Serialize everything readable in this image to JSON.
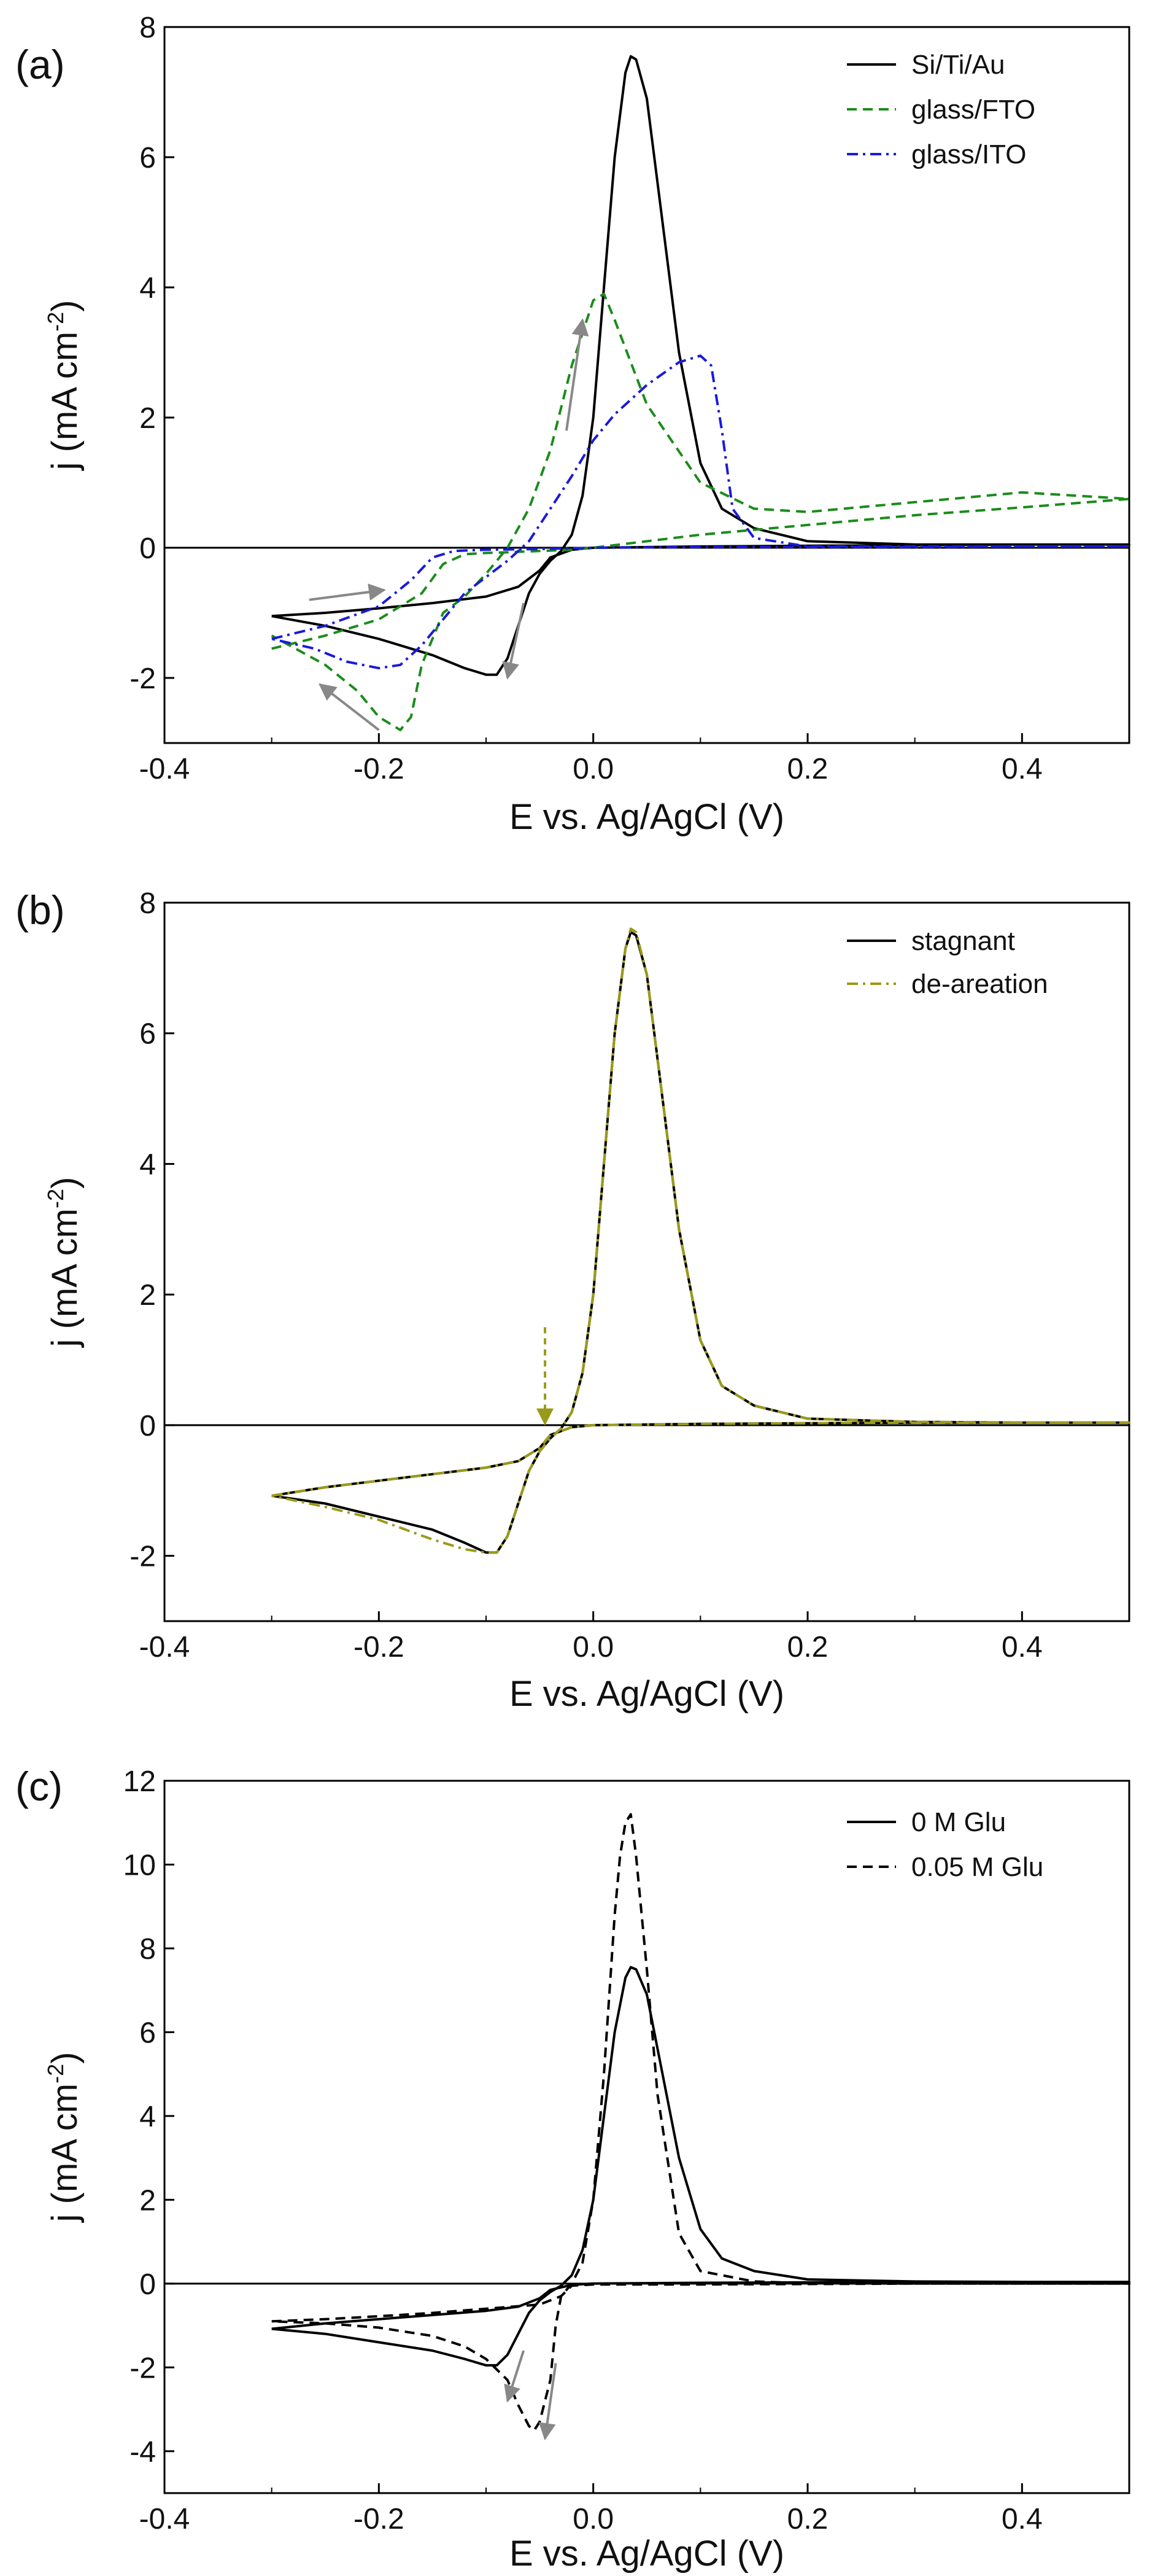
{
  "figure": {
    "panels": [
      "(a)",
      "(b)",
      "(c)"
    ]
  },
  "chart_data": [
    {
      "panel": "(a)",
      "type": "line",
      "xlabel": "E vs. Ag/AgCl (V)",
      "ylabel": "j (mA cm",
      "ylabel_sup": "-2",
      "ylabel_close": ")",
      "xlim": [
        -0.4,
        0.5
      ],
      "ylim": [
        -3,
        8
      ],
      "xticks": [
        -0.4,
        -0.2,
        0.0,
        0.2,
        0.4
      ],
      "xtick_labels": [
        "-0.4",
        "-0.2",
        "0.0",
        "0.2",
        "0.4"
      ],
      "yticks": [
        -2,
        0,
        2,
        4,
        6,
        8
      ],
      "ytick_labels": [
        "-2",
        "0",
        "2",
        "4",
        "6",
        "8"
      ],
      "grid": false,
      "legend_position": "top-right",
      "series": [
        {
          "name": "Si/Ti/Au",
          "color": "#000000",
          "style": "solid",
          "x": [
            -0.3,
            -0.25,
            -0.2,
            -0.15,
            -0.1,
            -0.07,
            -0.05,
            -0.04,
            -0.02,
            0.0,
            0.1,
            0.2,
            0.3,
            0.4,
            0.5,
            0.4,
            0.3,
            0.2,
            0.15,
            0.12,
            0.1,
            0.08,
            0.06,
            0.05,
            0.04,
            0.035,
            0.03,
            0.02,
            0.01,
            0.0,
            -0.01,
            -0.02,
            -0.03,
            -0.04,
            -0.05,
            -0.06,
            -0.07,
            -0.08,
            -0.09,
            -0.1,
            -0.12,
            -0.15,
            -0.2,
            -0.25,
            -0.3
          ],
          "y": [
            -1.05,
            -1.0,
            -0.93,
            -0.85,
            -0.75,
            -0.6,
            -0.35,
            -0.15,
            -0.03,
            0.0,
            0.02,
            0.03,
            0.04,
            0.05,
            0.05,
            0.05,
            0.05,
            0.1,
            0.3,
            0.6,
            1.3,
            3.0,
            5.6,
            6.9,
            7.5,
            7.55,
            7.3,
            6.0,
            4.0,
            2.0,
            0.8,
            0.2,
            -0.05,
            -0.2,
            -0.4,
            -0.7,
            -1.2,
            -1.7,
            -1.95,
            -1.95,
            -1.85,
            -1.65,
            -1.4,
            -1.2,
            -1.05
          ]
        },
        {
          "name": "glass/FTO",
          "color": "#1a8c1a",
          "style": "dashed",
          "x": [
            -0.3,
            -0.25,
            -0.2,
            -0.16,
            -0.14,
            -0.12,
            -0.1,
            -0.08,
            -0.05,
            -0.02,
            0.0,
            0.1,
            0.2,
            0.3,
            0.4,
            0.5,
            0.4,
            0.3,
            0.2,
            0.15,
            0.1,
            0.05,
            0.02,
            0.01,
            0.0,
            -0.02,
            -0.04,
            -0.06,
            -0.08,
            -0.1,
            -0.12,
            -0.14,
            -0.16,
            -0.17,
            -0.18,
            -0.2,
            -0.22,
            -0.25,
            -0.3
          ],
          "y": [
            -1.55,
            -1.35,
            -1.1,
            -0.7,
            -0.25,
            -0.1,
            -0.08,
            -0.07,
            -0.05,
            -0.03,
            0.0,
            0.2,
            0.35,
            0.5,
            0.62,
            0.75,
            0.85,
            0.7,
            0.55,
            0.6,
            1.0,
            2.2,
            3.5,
            3.9,
            3.8,
            2.8,
            1.5,
            0.6,
            0.0,
            -0.4,
            -0.75,
            -1.0,
            -1.8,
            -2.6,
            -2.8,
            -2.6,
            -2.2,
            -1.8,
            -1.35
          ]
        },
        {
          "name": "glass/ITO",
          "color": "#1a1adc",
          "style": "dashdot",
          "x": [
            -0.3,
            -0.25,
            -0.2,
            -0.17,
            -0.15,
            -0.13,
            -0.1,
            -0.05,
            0.0,
            0.1,
            0.2,
            0.3,
            0.4,
            0.5,
            0.4,
            0.3,
            0.2,
            0.15,
            0.13,
            0.12,
            0.11,
            0.1,
            0.08,
            0.05,
            0.02,
            0.0,
            -0.02,
            -0.04,
            -0.06,
            -0.08,
            -0.1,
            -0.12,
            -0.14,
            -0.16,
            -0.18,
            -0.2,
            -0.23,
            -0.26,
            -0.3
          ],
          "y": [
            -1.4,
            -1.2,
            -0.9,
            -0.5,
            -0.15,
            -0.05,
            -0.03,
            -0.02,
            0.0,
            0.01,
            0.01,
            0.01,
            0.02,
            0.02,
            0.02,
            0.02,
            0.02,
            0.15,
            0.6,
            1.8,
            2.8,
            2.95,
            2.85,
            2.5,
            2.05,
            1.65,
            1.1,
            0.6,
            0.1,
            -0.2,
            -0.45,
            -0.7,
            -1.1,
            -1.5,
            -1.8,
            -1.85,
            -1.75,
            -1.55,
            -1.4
          ]
        }
      ],
      "arrows": [
        {
          "x1": -0.265,
          "y1": -0.8,
          "x2": -0.195,
          "y2": -0.65
        },
        {
          "x1": -0.025,
          "y1": 1.8,
          "x2": -0.01,
          "y2": 3.5
        },
        {
          "x1": -0.065,
          "y1": -0.85,
          "x2": -0.08,
          "y2": -2.0
        },
        {
          "x1": -0.2,
          "y1": -2.8,
          "x2": -0.255,
          "y2": -2.1
        }
      ]
    },
    {
      "panel": "(b)",
      "type": "line",
      "xlabel": "E vs. Ag/AgCl (V)",
      "ylabel": "j (mA cm",
      "ylabel_sup": "-2",
      "ylabel_close": ")",
      "xlim": [
        -0.4,
        0.5
      ],
      "ylim": [
        -3,
        8
      ],
      "xticks": [
        -0.4,
        -0.2,
        0.0,
        0.2,
        0.4
      ],
      "xtick_labels": [
        "-0.4",
        "-0.2",
        "0.0",
        "0.2",
        "0.4"
      ],
      "yticks": [
        -2,
        0,
        2,
        4,
        6,
        8
      ],
      "ytick_labels": [
        "-2",
        "0",
        "2",
        "4",
        "6",
        "8"
      ],
      "grid": false,
      "legend_position": "top-right",
      "series": [
        {
          "name": "stagnant",
          "color": "#000000",
          "style": "solid",
          "x": [
            -0.3,
            -0.25,
            -0.2,
            -0.15,
            -0.1,
            -0.07,
            -0.05,
            -0.04,
            -0.02,
            0.0,
            0.1,
            0.2,
            0.3,
            0.4,
            0.5,
            0.4,
            0.3,
            0.2,
            0.15,
            0.12,
            0.1,
            0.08,
            0.06,
            0.05,
            0.04,
            0.035,
            0.03,
            0.02,
            0.01,
            0.0,
            -0.01,
            -0.02,
            -0.03,
            -0.04,
            -0.05,
            -0.06,
            -0.07,
            -0.08,
            -0.09,
            -0.1,
            -0.12,
            -0.15,
            -0.2,
            -0.25,
            -0.3
          ],
          "y": [
            -1.08,
            -0.95,
            -0.85,
            -0.75,
            -0.65,
            -0.55,
            -0.35,
            -0.15,
            -0.03,
            0.0,
            0.02,
            0.03,
            0.04,
            0.04,
            0.04,
            0.04,
            0.05,
            0.1,
            0.3,
            0.6,
            1.3,
            3.0,
            5.6,
            6.9,
            7.5,
            7.55,
            7.3,
            6.0,
            4.0,
            2.0,
            0.8,
            0.2,
            -0.05,
            -0.2,
            -0.4,
            -0.7,
            -1.2,
            -1.7,
            -1.95,
            -1.95,
            -1.8,
            -1.6,
            -1.4,
            -1.2,
            -1.08
          ]
        },
        {
          "name": "de-areation",
          "color": "#9a9a1a",
          "style": "dashdot",
          "x": [
            -0.3,
            -0.25,
            -0.2,
            -0.15,
            -0.1,
            -0.07,
            -0.05,
            -0.04,
            -0.02,
            0.0,
            0.1,
            0.2,
            0.3,
            0.4,
            0.5,
            0.4,
            0.3,
            0.2,
            0.15,
            0.12,
            0.1,
            0.08,
            0.06,
            0.05,
            0.04,
            0.035,
            0.03,
            0.02,
            0.01,
            0.0,
            -0.01,
            -0.02,
            -0.03,
            -0.04,
            -0.05,
            -0.06,
            -0.07,
            -0.08,
            -0.09,
            -0.1,
            -0.12,
            -0.15,
            -0.2,
            -0.25,
            -0.3
          ],
          "y": [
            -1.08,
            -0.95,
            -0.85,
            -0.75,
            -0.65,
            -0.55,
            -0.35,
            -0.15,
            -0.03,
            0.0,
            0.02,
            0.03,
            0.04,
            0.04,
            0.04,
            0.04,
            0.05,
            0.1,
            0.3,
            0.6,
            1.3,
            3.0,
            5.6,
            6.9,
            7.55,
            7.6,
            7.3,
            6.0,
            4.0,
            2.0,
            0.8,
            0.2,
            -0.05,
            -0.2,
            -0.4,
            -0.7,
            -1.2,
            -1.7,
            -1.95,
            -1.95,
            -1.9,
            -1.75,
            -1.45,
            -1.25,
            -1.08
          ]
        }
      ],
      "arrows": [
        {
          "x1": -0.045,
          "y1": 1.5,
          "x2": -0.045,
          "y2": 0.02,
          "dashed": true,
          "color": "#9a9a1a"
        }
      ]
    },
    {
      "panel": "(c)",
      "type": "line",
      "xlabel": "E vs. Ag/AgCl (V)",
      "ylabel": "j (mA cm",
      "ylabel_sup": "-2",
      "ylabel_close": ")",
      "xlim": [
        -0.4,
        0.5
      ],
      "ylim": [
        -5,
        12
      ],
      "xticks": [
        -0.4,
        -0.2,
        0.0,
        0.2,
        0.4
      ],
      "xtick_labels": [
        "-0.4",
        "-0.2",
        "0.0",
        "0.2",
        "0.4"
      ],
      "yticks": [
        -4,
        -2,
        0,
        2,
        4,
        6,
        8,
        10,
        12
      ],
      "ytick_labels": [
        "-4",
        "-2",
        "0",
        "2",
        "4",
        "6",
        "8",
        "10",
        "12"
      ],
      "grid": false,
      "legend_position": "top-right",
      "series": [
        {
          "name": "0 M Glu",
          "color": "#000000",
          "style": "solid",
          "x": [
            -0.3,
            -0.25,
            -0.2,
            -0.15,
            -0.1,
            -0.07,
            -0.05,
            -0.04,
            -0.02,
            0.0,
            0.1,
            0.2,
            0.3,
            0.4,
            0.5,
            0.4,
            0.3,
            0.2,
            0.15,
            0.12,
            0.1,
            0.08,
            0.06,
            0.05,
            0.04,
            0.035,
            0.03,
            0.02,
            0.01,
            0.0,
            -0.01,
            -0.02,
            -0.03,
            -0.04,
            -0.05,
            -0.06,
            -0.07,
            -0.08,
            -0.09,
            -0.1,
            -0.12,
            -0.15,
            -0.2,
            -0.25,
            -0.3
          ],
          "y": [
            -1.08,
            -0.95,
            -0.85,
            -0.75,
            -0.65,
            -0.55,
            -0.35,
            -0.15,
            -0.03,
            0.0,
            0.02,
            0.03,
            0.04,
            0.04,
            0.04,
            0.04,
            0.05,
            0.1,
            0.3,
            0.6,
            1.3,
            3.0,
            5.6,
            6.9,
            7.5,
            7.55,
            7.3,
            6.0,
            4.0,
            2.0,
            0.8,
            0.2,
            -0.05,
            -0.2,
            -0.4,
            -0.7,
            -1.2,
            -1.7,
            -1.95,
            -1.95,
            -1.8,
            -1.6,
            -1.4,
            -1.2,
            -1.08
          ]
        },
        {
          "name": "0.05 M Glu",
          "color": "#000000",
          "style": "dashed",
          "x": [
            -0.3,
            -0.25,
            -0.2,
            -0.15,
            -0.1,
            -0.05,
            -0.03,
            -0.02,
            0.0,
            0.1,
            0.2,
            0.3,
            0.4,
            0.5,
            0.4,
            0.3,
            0.2,
            0.15,
            0.1,
            0.08,
            0.06,
            0.05,
            0.04,
            0.035,
            0.03,
            0.025,
            0.02,
            0.01,
            0.0,
            -0.01,
            -0.02,
            -0.03,
            -0.035,
            -0.04,
            -0.05,
            -0.055,
            -0.06,
            -0.07,
            -0.08,
            -0.1,
            -0.12,
            -0.15,
            -0.2,
            -0.25,
            -0.3
          ],
          "y": [
            -0.9,
            -0.85,
            -0.78,
            -0.7,
            -0.6,
            -0.5,
            -0.3,
            -0.05,
            -0.02,
            -0.02,
            -0.01,
            0.0,
            0.0,
            0.0,
            0.0,
            0.0,
            0.01,
            0.05,
            0.3,
            1.2,
            4.5,
            7.5,
            10.2,
            11.2,
            11.0,
            10.2,
            8.8,
            5.0,
            2.0,
            0.5,
            0.0,
            -0.3,
            -1.0,
            -2.3,
            -3.3,
            -3.5,
            -3.4,
            -2.9,
            -2.3,
            -1.8,
            -1.5,
            -1.25,
            -1.05,
            -0.95,
            -0.9
          ]
        }
      ],
      "arrows": [
        {
          "x1": -0.065,
          "y1": -1.6,
          "x2": -0.08,
          "y2": -2.8
        },
        {
          "x1": -0.035,
          "y1": -1.9,
          "x2": -0.045,
          "y2": -3.7
        }
      ]
    }
  ]
}
